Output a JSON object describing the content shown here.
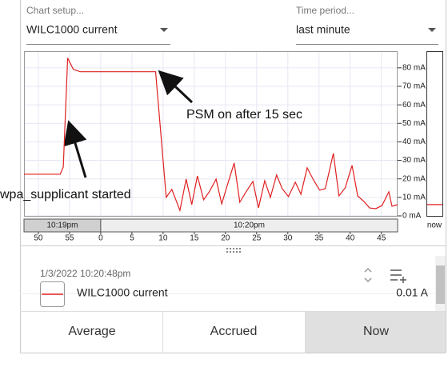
{
  "header": {
    "chart_setup_label": "Chart setup...",
    "chart_setup_value": "WILC1000 current",
    "time_period_label": "Time period...",
    "time_period_value": "last minute"
  },
  "chart_data": {
    "type": "line",
    "x": [
      -12.3,
      -6.5,
      -6.0,
      -5.3,
      -4.4,
      -3.3,
      8.8,
      10.5,
      11.4,
      12.7,
      13.7,
      14.6,
      15.5,
      16.5,
      17.4,
      18.5,
      19.4,
      20.4,
      21.4,
      22.3,
      23.3,
      24.4,
      25.3,
      26.3,
      27.2,
      28.2,
      29.1,
      30.1,
      31.2,
      32.1,
      33.1,
      34.1,
      35.1,
      36.0,
      37.3,
      38.2,
      39.2,
      40.3,
      41.2,
      42.2,
      43.1,
      44.1,
      45.1,
      46.2,
      46.7,
      47.6
    ],
    "series": [
      {
        "name": "WILC1000 current",
        "color": "#e02020",
        "values": [
          22.5,
          22.5,
          26.4,
          85.3,
          79.2,
          77.9,
          77.9,
          10.0,
          14.3,
          3.0,
          19.9,
          6.1,
          21.6,
          8.7,
          13.0,
          19.9,
          6.5,
          17.7,
          28.6,
          7.4,
          13.0,
          18.6,
          4.3,
          19.0,
          10.0,
          22.1,
          14.7,
          10.4,
          18.2,
          11.7,
          26.0,
          19.5,
          13.9,
          14.7,
          33.8,
          10.8,
          15.2,
          27.3,
          10.8,
          7.8,
          4.3,
          3.9,
          5.6,
          13.0,
          5.2,
          6.1
        ]
      }
    ],
    "xlim": [
      -12.3,
      47.6
    ],
    "xticks": [
      {
        "value": -10,
        "label": "50"
      },
      {
        "value": -5,
        "label": "55"
      },
      0,
      5,
      10,
      15,
      20,
      25,
      30,
      35,
      40,
      45
    ],
    "ylim": [
      0,
      89
    ],
    "yticks": [
      {
        "value": 0,
        "label": "0 mA"
      },
      {
        "value": 10,
        "label": "10 mA"
      },
      {
        "value": 20,
        "label": "20 mA"
      },
      {
        "value": 30,
        "label": "30 mA"
      },
      {
        "value": 40,
        "label": "40 mA"
      },
      {
        "value": 50,
        "label": "50 mA"
      },
      {
        "value": 60,
        "label": "60 mA"
      },
      {
        "value": 70,
        "label": "70 mA"
      },
      {
        "value": 80,
        "label": "80 mA"
      }
    ],
    "grid": true,
    "time_bands": [
      {
        "label": "10:19pm",
        "end": 0
      },
      {
        "label": "10:20pm"
      }
    ],
    "annotations": [
      "PSM on after 15 sec",
      "wpa_supplicant started"
    ],
    "now_label": "now",
    "now_value": 6.1
  },
  "details": {
    "timestamp": "1/3/2022 10:20:48pm",
    "reading": "0.01 A"
  },
  "buttons": [
    "Average",
    "Accrued",
    "Now"
  ]
}
